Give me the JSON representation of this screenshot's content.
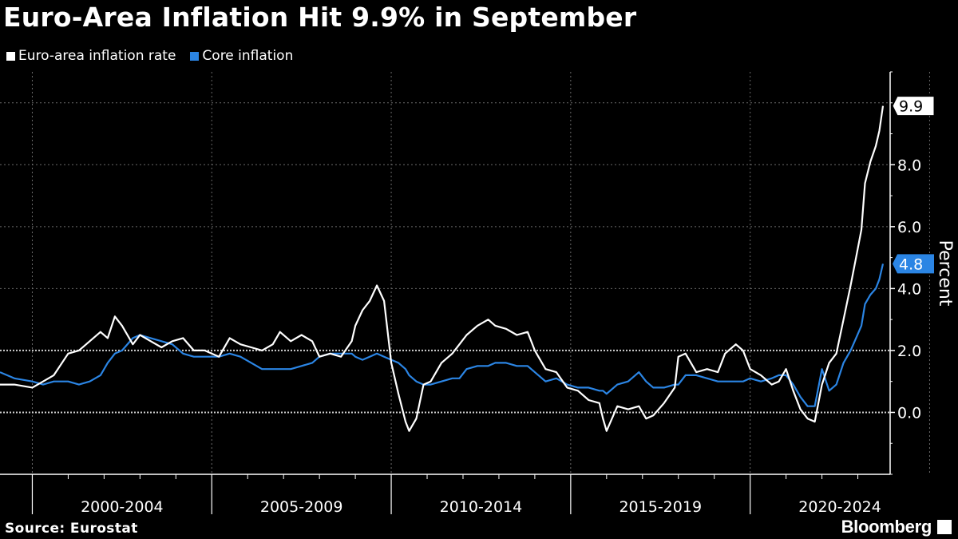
{
  "chart_data": {
    "type": "line",
    "title": "Euro-Area Inflation Hit 9.9% in September",
    "ylabel": "Percent",
    "ylim": [
      -2.0,
      11.0
    ],
    "yticks": [
      0.0,
      2.0,
      4.0,
      6.0,
      8.0
    ],
    "ytick_labels": [
      "0.0",
      "2.0",
      "4.0",
      "6.0",
      "8.0"
    ],
    "xlim": [
      1998.1,
      2022.9
    ],
    "x_period_labels": [
      "2000-2004",
      "2005-2009",
      "2010-2014",
      "2015-2019",
      "2020-2024"
    ],
    "grid": true,
    "series": [
      {
        "name": "Euro-area inflation rate",
        "color": "#ffffff",
        "end_label": "9.9",
        "points": [
          [
            1998.1,
            0.9
          ],
          [
            1998.5,
            0.9
          ],
          [
            1999.0,
            0.8
          ],
          [
            1999.3,
            1.0
          ],
          [
            1999.6,
            1.2
          ],
          [
            2000.0,
            1.9
          ],
          [
            2000.3,
            2.0
          ],
          [
            2000.6,
            2.3
          ],
          [
            2000.9,
            2.6
          ],
          [
            2001.1,
            2.4
          ],
          [
            2001.3,
            3.1
          ],
          [
            2001.5,
            2.8
          ],
          [
            2001.8,
            2.2
          ],
          [
            2002.0,
            2.5
          ],
          [
            2002.3,
            2.3
          ],
          [
            2002.6,
            2.1
          ],
          [
            2002.9,
            2.3
          ],
          [
            2003.2,
            2.4
          ],
          [
            2003.5,
            2.0
          ],
          [
            2003.8,
            2.0
          ],
          [
            2004.2,
            1.8
          ],
          [
            2004.5,
            2.4
          ],
          [
            2004.8,
            2.2
          ],
          [
            2005.1,
            2.1
          ],
          [
            2005.4,
            2.0
          ],
          [
            2005.7,
            2.2
          ],
          [
            2005.9,
            2.6
          ],
          [
            2006.2,
            2.3
          ],
          [
            2006.5,
            2.5
          ],
          [
            2006.8,
            2.3
          ],
          [
            2007.0,
            1.8
          ],
          [
            2007.3,
            1.9
          ],
          [
            2007.6,
            1.8
          ],
          [
            2007.9,
            2.3
          ],
          [
            2008.0,
            2.8
          ],
          [
            2008.2,
            3.3
          ],
          [
            2008.4,
            3.6
          ],
          [
            2008.6,
            4.1
          ],
          [
            2008.8,
            3.6
          ],
          [
            2009.0,
            1.6
          ],
          [
            2009.2,
            0.6
          ],
          [
            2009.4,
            -0.3
          ],
          [
            2009.5,
            -0.6
          ],
          [
            2009.7,
            -0.2
          ],
          [
            2009.9,
            0.9
          ],
          [
            2010.1,
            1.0
          ],
          [
            2010.4,
            1.6
          ],
          [
            2010.7,
            1.9
          ],
          [
            2010.9,
            2.2
          ],
          [
            2011.1,
            2.5
          ],
          [
            2011.4,
            2.8
          ],
          [
            2011.7,
            3.0
          ],
          [
            2011.9,
            2.8
          ],
          [
            2012.2,
            2.7
          ],
          [
            2012.5,
            2.5
          ],
          [
            2012.8,
            2.6
          ],
          [
            2013.0,
            2.0
          ],
          [
            2013.3,
            1.4
          ],
          [
            2013.6,
            1.3
          ],
          [
            2013.9,
            0.8
          ],
          [
            2014.2,
            0.7
          ],
          [
            2014.5,
            0.4
          ],
          [
            2014.8,
            0.3
          ],
          [
            2014.9,
            -0.2
          ],
          [
            2015.0,
            -0.6
          ],
          [
            2015.3,
            0.2
          ],
          [
            2015.6,
            0.1
          ],
          [
            2015.9,
            0.2
          ],
          [
            2016.1,
            -0.2
          ],
          [
            2016.3,
            -0.1
          ],
          [
            2016.6,
            0.3
          ],
          [
            2016.9,
            0.8
          ],
          [
            2017.0,
            1.8
          ],
          [
            2017.2,
            1.9
          ],
          [
            2017.5,
            1.3
          ],
          [
            2017.8,
            1.4
          ],
          [
            2018.1,
            1.3
          ],
          [
            2018.3,
            1.9
          ],
          [
            2018.6,
            2.2
          ],
          [
            2018.8,
            2.0
          ],
          [
            2019.0,
            1.4
          ],
          [
            2019.3,
            1.2
          ],
          [
            2019.6,
            0.9
          ],
          [
            2019.8,
            1.0
          ],
          [
            2020.0,
            1.4
          ],
          [
            2020.2,
            0.7
          ],
          [
            2020.4,
            0.1
          ],
          [
            2020.6,
            -0.2
          ],
          [
            2020.8,
            -0.3
          ],
          [
            2021.0,
            0.9
          ],
          [
            2021.2,
            1.6
          ],
          [
            2021.4,
            1.9
          ],
          [
            2021.6,
            3.0
          ],
          [
            2021.8,
            4.1
          ],
          [
            2021.95,
            5.0
          ],
          [
            2022.1,
            5.9
          ],
          [
            2022.2,
            7.4
          ],
          [
            2022.35,
            8.1
          ],
          [
            2022.5,
            8.6
          ],
          [
            2022.6,
            9.1
          ],
          [
            2022.7,
            9.9
          ]
        ]
      },
      {
        "name": "Core inflation",
        "color": "#2b85e4",
        "end_label": "4.8",
        "points": [
          [
            1998.1,
            1.3
          ],
          [
            1998.5,
            1.1
          ],
          [
            1999.0,
            1.0
          ],
          [
            1999.3,
            0.9
          ],
          [
            1999.6,
            1.0
          ],
          [
            2000.0,
            1.0
          ],
          [
            2000.3,
            0.9
          ],
          [
            2000.6,
            1.0
          ],
          [
            2000.9,
            1.2
          ],
          [
            2001.1,
            1.6
          ],
          [
            2001.3,
            1.9
          ],
          [
            2001.5,
            2.0
          ],
          [
            2001.8,
            2.4
          ],
          [
            2002.0,
            2.5
          ],
          [
            2002.3,
            2.4
          ],
          [
            2002.6,
            2.3
          ],
          [
            2002.9,
            2.2
          ],
          [
            2003.2,
            1.9
          ],
          [
            2003.5,
            1.8
          ],
          [
            2003.8,
            1.8
          ],
          [
            2004.2,
            1.8
          ],
          [
            2004.5,
            1.9
          ],
          [
            2004.8,
            1.8
          ],
          [
            2005.1,
            1.6
          ],
          [
            2005.4,
            1.4
          ],
          [
            2005.7,
            1.4
          ],
          [
            2005.9,
            1.4
          ],
          [
            2006.2,
            1.4
          ],
          [
            2006.5,
            1.5
          ],
          [
            2006.8,
            1.6
          ],
          [
            2007.0,
            1.8
          ],
          [
            2007.3,
            1.9
          ],
          [
            2007.6,
            1.9
          ],
          [
            2007.9,
            1.9
          ],
          [
            2008.0,
            1.8
          ],
          [
            2008.2,
            1.7
          ],
          [
            2008.4,
            1.8
          ],
          [
            2008.6,
            1.9
          ],
          [
            2008.8,
            1.8
          ],
          [
            2009.0,
            1.7
          ],
          [
            2009.2,
            1.6
          ],
          [
            2009.4,
            1.4
          ],
          [
            2009.5,
            1.2
          ],
          [
            2009.7,
            1.0
          ],
          [
            2009.9,
            0.9
          ],
          [
            2010.1,
            0.9
          ],
          [
            2010.4,
            1.0
          ],
          [
            2010.7,
            1.1
          ],
          [
            2010.9,
            1.1
          ],
          [
            2011.1,
            1.4
          ],
          [
            2011.4,
            1.5
          ],
          [
            2011.7,
            1.5
          ],
          [
            2011.9,
            1.6
          ],
          [
            2012.2,
            1.6
          ],
          [
            2012.5,
            1.5
          ],
          [
            2012.8,
            1.5
          ],
          [
            2013.0,
            1.3
          ],
          [
            2013.3,
            1.0
          ],
          [
            2013.6,
            1.1
          ],
          [
            2013.9,
            0.9
          ],
          [
            2014.2,
            0.8
          ],
          [
            2014.5,
            0.8
          ],
          [
            2014.8,
            0.7
          ],
          [
            2014.9,
            0.7
          ],
          [
            2015.0,
            0.6
          ],
          [
            2015.3,
            0.9
          ],
          [
            2015.6,
            1.0
          ],
          [
            2015.9,
            1.3
          ],
          [
            2016.1,
            1.0
          ],
          [
            2016.3,
            0.8
          ],
          [
            2016.6,
            0.8
          ],
          [
            2016.9,
            0.9
          ],
          [
            2017.0,
            0.9
          ],
          [
            2017.2,
            1.2
          ],
          [
            2017.5,
            1.2
          ],
          [
            2017.8,
            1.1
          ],
          [
            2018.1,
            1.0
          ],
          [
            2018.3,
            1.0
          ],
          [
            2018.6,
            1.0
          ],
          [
            2018.8,
            1.0
          ],
          [
            2019.0,
            1.1
          ],
          [
            2019.3,
            1.0
          ],
          [
            2019.6,
            1.1
          ],
          [
            2019.8,
            1.2
          ],
          [
            2020.0,
            1.2
          ],
          [
            2020.2,
            0.9
          ],
          [
            2020.4,
            0.5
          ],
          [
            2020.6,
            0.2
          ],
          [
            2020.8,
            0.2
          ],
          [
            2021.0,
            1.4
          ],
          [
            2021.2,
            0.7
          ],
          [
            2021.4,
            0.9
          ],
          [
            2021.6,
            1.6
          ],
          [
            2021.8,
            2.0
          ],
          [
            2021.95,
            2.4
          ],
          [
            2022.1,
            2.8
          ],
          [
            2022.2,
            3.5
          ],
          [
            2022.35,
            3.8
          ],
          [
            2022.5,
            4.0
          ],
          [
            2022.6,
            4.3
          ],
          [
            2022.7,
            4.8
          ]
        ]
      }
    ],
    "legend": {
      "placement": "top-left",
      "items": [
        {
          "label": "Euro-area inflation rate",
          "color": "#ffffff"
        },
        {
          "label": "Core inflation",
          "color": "#2b85e4"
        }
      ]
    }
  },
  "footer": {
    "source": "Source:  Eurostat",
    "brand": "Bloomberg"
  }
}
